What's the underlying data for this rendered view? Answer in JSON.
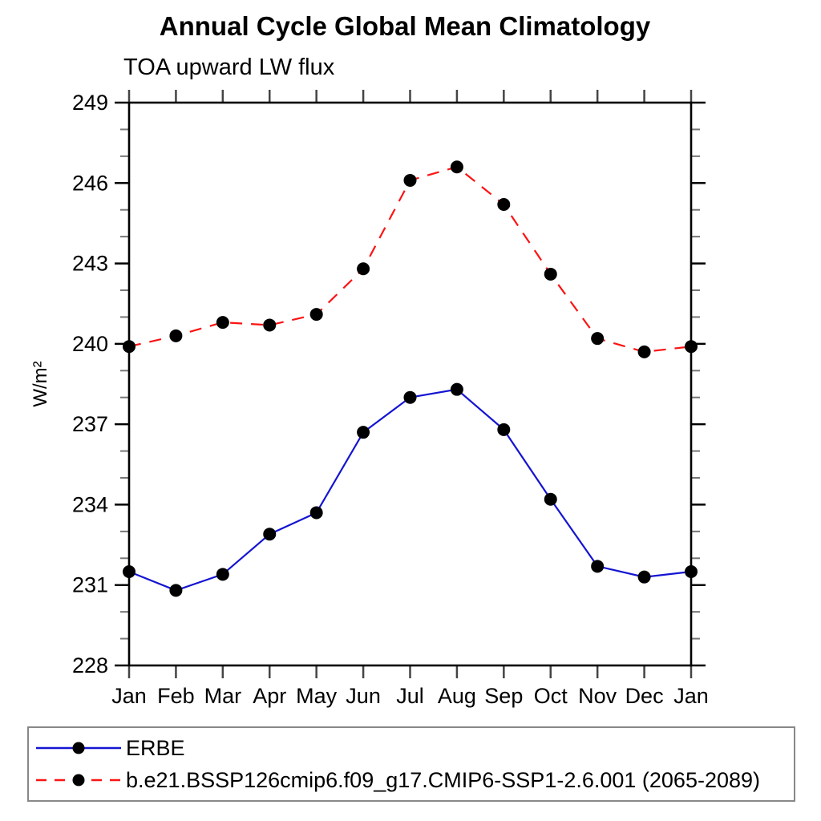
{
  "chart_data": {
    "type": "line",
    "title": "Annual Cycle Global Mean Climatology",
    "subtitle": "TOA upward LW flux",
    "xlabel": "",
    "ylabel": "W/m²",
    "categories": [
      "Jan",
      "Feb",
      "Mar",
      "Apr",
      "May",
      "Jun",
      "Jul",
      "Aug",
      "Sep",
      "Oct",
      "Nov",
      "Dec",
      "Jan"
    ],
    "ylim": [
      228,
      249
    ],
    "yticks_major": [
      228,
      231,
      234,
      237,
      240,
      243,
      246,
      249
    ],
    "ytick_minor_step": 1,
    "grid": false,
    "legend_position": "bottom",
    "axis_color": "#000000",
    "minor_tick_color": "#777777",
    "marker_color": "#000000",
    "series": [
      {
        "name": "ERBE",
        "color": "#1414d2",
        "line_style": "solid",
        "marker": "circle",
        "values": [
          231.5,
          230.8,
          231.4,
          232.9,
          233.7,
          236.7,
          238.0,
          238.3,
          236.8,
          234.2,
          231.7,
          231.3,
          231.5
        ]
      },
      {
        "name": "b.e21.BSSP126cmip6.f09_g17.CMIP6-SSP1-2.6.001 (2065-2089)",
        "color": "#fb1413",
        "line_style": "dashed",
        "marker": "circle",
        "values": [
          239.9,
          240.3,
          240.8,
          240.7,
          241.1,
          242.8,
          246.1,
          246.6,
          245.2,
          242.6,
          240.2,
          239.7,
          239.9
        ]
      }
    ]
  }
}
